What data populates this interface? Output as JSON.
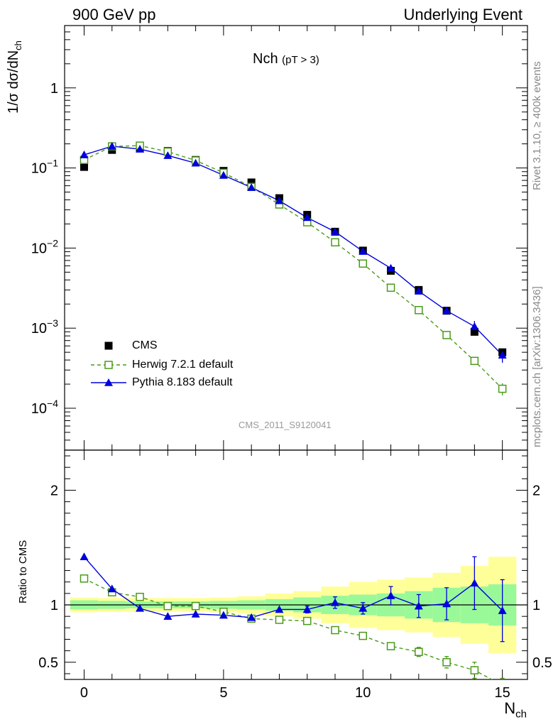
{
  "header": {
    "left": "900 GeV pp",
    "right": "Underlying Event"
  },
  "side_text": {
    "rivet": "Rivet 3.1.10, ≥ 400k events",
    "mcplots": "mcplots.cern.ch [arXiv:1306.3436]"
  },
  "chart_data": [
    {
      "type": "scatter",
      "panel": "main",
      "title": "Nch",
      "title_sub": "(pT >  3)",
      "ylabel": "1/σ dσ/dN",
      "ylabel_sub": "ch",
      "yscale": "log",
      "ylim": [
        3e-05,
        6
      ],
      "xlim": [
        -0.7,
        15.9
      ],
      "y_ticks": [
        {
          "value": 1,
          "base": "1",
          "exp": ""
        },
        {
          "value": 0.1,
          "base": "10",
          "exp": "−1"
        },
        {
          "value": 0.01,
          "base": "10",
          "exp": "−2"
        },
        {
          "value": 0.001,
          "base": "10",
          "exp": "−3"
        },
        {
          "value": 0.0001,
          "base": "10",
          "exp": "−4"
        }
      ],
      "watermark": "CMS_2011_S9120041",
      "x": [
        0,
        1,
        2,
        3,
        4,
        5,
        6,
        7,
        8,
        9,
        10,
        11,
        12,
        13,
        14,
        15
      ],
      "series": [
        {
          "name": "CMS",
          "color": "#000000",
          "marker": "square",
          "values": [
            0.103,
            0.168,
            0.176,
            0.163,
            0.126,
            0.092,
            0.066,
            0.042,
            0.026,
            0.016,
            0.0093,
            0.0052,
            0.003,
            0.00165,
            0.0009,
            0.0005
          ]
        },
        {
          "name": "Herwig 7.2.1 default",
          "color": "#4a9a1a",
          "marker": "open-square",
          "line": "dashed",
          "values": [
            0.126,
            0.186,
            0.19,
            0.16,
            0.124,
            0.087,
            0.058,
            0.035,
            0.021,
            0.0118,
            0.0064,
            0.0032,
            0.00168,
            0.00082,
            0.00039,
            0.000175
          ],
          "err_high": [
            0,
            0,
            0,
            0,
            0,
            0,
            0,
            0,
            0,
            0,
            0,
            0,
            0,
            0,
            3e-05,
            3e-05
          ]
        },
        {
          "name": "Pythia 8.183 default",
          "color": "#0000dd",
          "marker": "triangle",
          "line": "solid",
          "values": [
            0.146,
            0.187,
            0.172,
            0.143,
            0.115,
            0.081,
            0.057,
            0.039,
            0.024,
            0.016,
            0.0091,
            0.0056,
            0.0029,
            0.00165,
            0.00105,
            0.00046
          ],
          "err_high": [
            0,
            0,
            0,
            0,
            0,
            0,
            0,
            0,
            0,
            0,
            0,
            0,
            0,
            0,
            0.00018,
            9e-05
          ]
        }
      ]
    },
    {
      "type": "line",
      "panel": "ratio",
      "ylabel": "Ratio to CMS",
      "xlabel": "N",
      "xlabel_sub": "ch",
      "ylim": [
        0.35,
        2.35
      ],
      "xlim": [
        -0.7,
        15.9
      ],
      "y_ticks": [
        {
          "value": 2,
          "label": "2"
        },
        {
          "value": 1,
          "label": "1"
        },
        {
          "value": 0.5,
          "label": "0.5"
        }
      ],
      "x_ticks": [
        0,
        5,
        10,
        15
      ],
      "x": [
        0,
        1,
        2,
        3,
        4,
        5,
        6,
        7,
        8,
        9,
        10,
        11,
        12,
        13,
        14,
        15
      ],
      "band_green_halfwidth": [
        0.04,
        0.035,
        0.03,
        0.03,
        0.03,
        0.035,
        0.04,
        0.05,
        0.065,
        0.08,
        0.09,
        0.1,
        0.12,
        0.15,
        0.16,
        0.18
      ],
      "band_yellow_halfwidth": [
        0.065,
        0.06,
        0.06,
        0.06,
        0.06,
        0.065,
        0.075,
        0.1,
        0.12,
        0.16,
        0.2,
        0.22,
        0.24,
        0.28,
        0.34,
        0.42
      ],
      "series": [
        {
          "name": "Herwig 7.2.1 default",
          "color": "#4a9a1a",
          "marker": "open-square",
          "line": "dashed",
          "values": [
            1.23,
            1.11,
            1.07,
            0.99,
            0.99,
            0.94,
            0.88,
            0.87,
            0.86,
            0.78,
            0.73,
            0.64,
            0.59,
            0.5,
            0.43,
            0.3
          ],
          "err": [
            0,
            0,
            0,
            0,
            0,
            0,
            0,
            0,
            0,
            0,
            0.02,
            0.03,
            0.04,
            0.05,
            0.07,
            0.06
          ]
        },
        {
          "name": "Pythia 8.183 default",
          "color": "#0000dd",
          "marker": "triangle",
          "line": "solid",
          "values": [
            1.42,
            1.14,
            0.97,
            0.9,
            0.92,
            0.91,
            0.89,
            0.96,
            0.96,
            1.02,
            0.97,
            1.08,
            0.99,
            1.01,
            1.19,
            0.95
          ],
          "err": [
            0,
            0,
            0,
            0,
            0,
            0,
            0,
            0,
            0.03,
            0.05,
            0.05,
            0.08,
            0.1,
            0.14,
            0.23,
            0.27
          ]
        }
      ]
    }
  ]
}
